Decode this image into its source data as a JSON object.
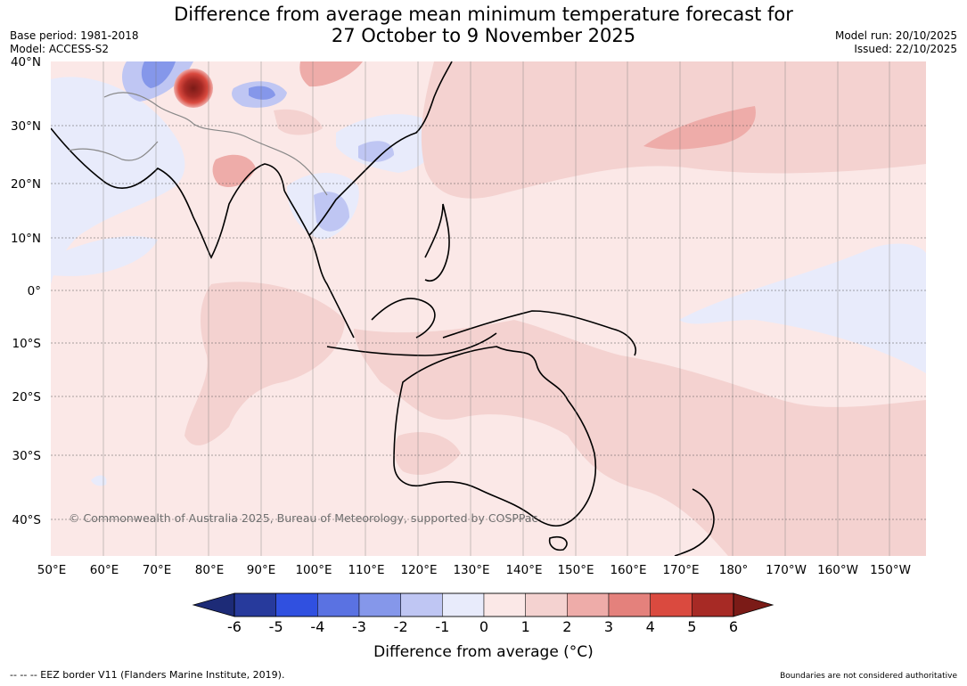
{
  "title_line1": "Difference from average mean minimum temperature forecast for",
  "title_line2": "27 October to 9 November 2025",
  "base_period": "Base period: 1981-2018",
  "model": "Model: ACCESS-S2",
  "model_run": "Model run: 20/10/2025",
  "issued": "Issued: 22/10/2025",
  "lat_labels": [
    "40°N",
    "30°N",
    "20°N",
    "10°N",
    "0°",
    "10°S",
    "20°S",
    "30°S",
    "40°S"
  ],
  "lon_labels": [
    "50°E",
    "60°E",
    "70°E",
    "80°E",
    "90°E",
    "100°E",
    "110°E",
    "120°E",
    "130°E",
    "140°E",
    "150°E",
    "160°E",
    "170°E",
    "180°",
    "170°W",
    "160°W",
    "150°W"
  ],
  "copyright": "© Commonwealth of Australia 2025, Bureau of Meteorology, supported by COSPPac",
  "colorbar": {
    "ticks": [
      "-6",
      "-5",
      "-4",
      "-3",
      "-2",
      "-1",
      "0",
      "1",
      "2",
      "3",
      "4",
      "5",
      "6"
    ],
    "colors": [
      "#273a9c",
      "#3050e0",
      "#5a72e2",
      "#8597ea",
      "#bfc6f3",
      "#e8ebfb",
      "#fbe8e7",
      "#f4d2d0",
      "#eeaca9",
      "#e4817c",
      "#da4a3f",
      "#a72a25"
    ],
    "under_color": "#1d2b77",
    "over_color": "#7b1b17",
    "label": "Difference from average (°C)"
  },
  "footer_left": "--  --  -- EEZ border V11 (Flanders Marine Institute, 2019).",
  "footer_right": "Boundaries are not considered authoritative"
}
